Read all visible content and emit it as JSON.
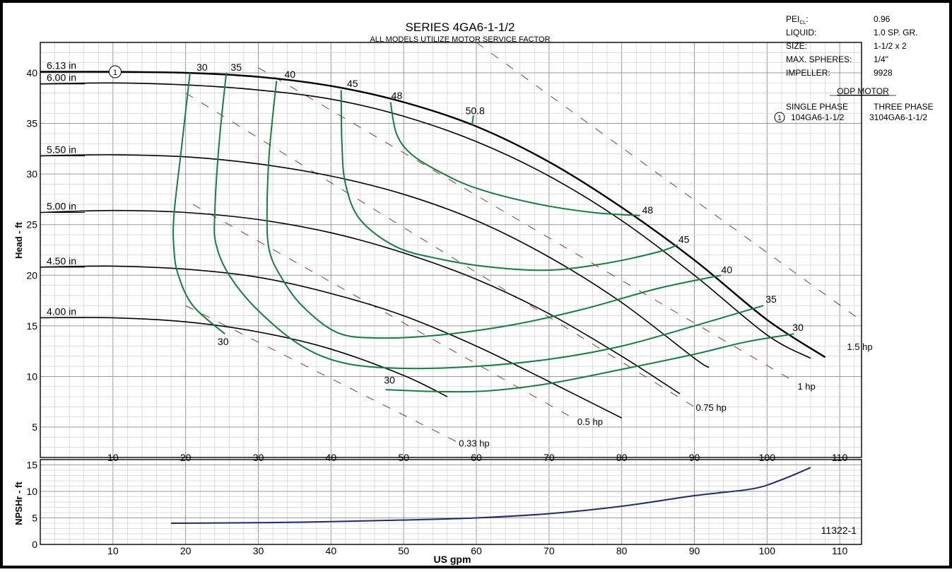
{
  "chart_data": {
    "type": "line",
    "title": "SERIES 4GA6-1-1/2",
    "subtitle": "ALL MODELS UTILIZE MOTOR SERVICE FACTOR",
    "xlabel": "US gpm",
    "ylabel_head": "Head - ft",
    "ylabel_npsh": "NPSHr - ft",
    "xlim": [
      0,
      113
    ],
    "ylim_head": [
      2,
      43
    ],
    "ylim_npsh": [
      0,
      16
    ],
    "x_ticks": [
      10,
      20,
      30,
      40,
      50,
      60,
      70,
      80,
      90,
      100,
      110
    ],
    "y_ticks_head": [
      5,
      10,
      15,
      20,
      25,
      30,
      35,
      40
    ],
    "y_ticks_npsh": [
      0,
      5,
      10,
      15
    ],
    "grid": true,
    "colors": {
      "impeller": "#000000",
      "efficiency": "#118040",
      "horsepower": "#8b3a2a",
      "npsh": "#1f2a6e",
      "border": "#000000"
    },
    "impeller_curves": [
      {
        "name": "6.13 in",
        "marker": "1",
        "points": [
          [
            0,
            40.1
          ],
          [
            10,
            40.1
          ],
          [
            20,
            40
          ],
          [
            30,
            39.6
          ],
          [
            40,
            38.7
          ],
          [
            50,
            37.1
          ],
          [
            60,
            34.7
          ],
          [
            70,
            31.2
          ],
          [
            80,
            26.7
          ],
          [
            90,
            21.5
          ],
          [
            100,
            15.6
          ],
          [
            108,
            11.9
          ]
        ]
      },
      {
        "name": "6.00 in",
        "points": [
          [
            0,
            38.9
          ],
          [
            10,
            39
          ],
          [
            20,
            38.8
          ],
          [
            30,
            38.3
          ],
          [
            40,
            37.4
          ],
          [
            50,
            35.7
          ],
          [
            60,
            33.2
          ],
          [
            70,
            29.8
          ],
          [
            80,
            25.4
          ],
          [
            90,
            20
          ],
          [
            100,
            14.1
          ],
          [
            106,
            11.8
          ]
        ]
      },
      {
        "name": "5.50 in",
        "points": [
          [
            0,
            31.8
          ],
          [
            10,
            31.9
          ],
          [
            20,
            31.7
          ],
          [
            30,
            31
          ],
          [
            40,
            29.8
          ],
          [
            50,
            28
          ],
          [
            60,
            25.4
          ],
          [
            70,
            21.8
          ],
          [
            80,
            17.3
          ],
          [
            90,
            11.8
          ],
          [
            92,
            10.9
          ]
        ]
      },
      {
        "name": "5.00 in",
        "points": [
          [
            0,
            26.2
          ],
          [
            10,
            26.4
          ],
          [
            20,
            26.2
          ],
          [
            30,
            25.5
          ],
          [
            40,
            24.2
          ],
          [
            50,
            22.2
          ],
          [
            60,
            19.6
          ],
          [
            70,
            16.2
          ],
          [
            80,
            12
          ],
          [
            88,
            8.3
          ]
        ]
      },
      {
        "name": "4.50 in",
        "points": [
          [
            0,
            20.8
          ],
          [
            10,
            20.9
          ],
          [
            20,
            20.6
          ],
          [
            30,
            19.8
          ],
          [
            40,
            18.2
          ],
          [
            50,
            16
          ],
          [
            60,
            13
          ],
          [
            70,
            9.5
          ],
          [
            80,
            5.9
          ]
        ]
      },
      {
        "name": "4.00 in",
        "points": [
          [
            0,
            15.8
          ],
          [
            10,
            15.8
          ],
          [
            20,
            15.4
          ],
          [
            30,
            14.4
          ],
          [
            40,
            12.7
          ],
          [
            50,
            10.1
          ],
          [
            56,
            8
          ]
        ]
      }
    ],
    "efficiency_curves": [
      {
        "name": "30",
        "label_top": "30",
        "label_left": "30",
        "label_right": "30",
        "points": [
          [
            20.6,
            40
          ],
          [
            19.5,
            33
          ],
          [
            18.4,
            26
          ],
          [
            18.4,
            22.5
          ],
          [
            19,
            20
          ],
          [
            21,
            17
          ],
          [
            25.4,
            14.2
          ]
        ],
        "bottom": [
          [
            47.5,
            8.7
          ],
          [
            55,
            8.5
          ],
          [
            62,
            8.6
          ],
          [
            70,
            9.3
          ],
          [
            80,
            10.7
          ],
          [
            90,
            12.2
          ],
          [
            97,
            13.4
          ],
          [
            103.7,
            14.2
          ]
        ]
      },
      {
        "name": "35",
        "label_top": "35",
        "label_right": "35",
        "points": [
          [
            25.6,
            40
          ],
          [
            24.6,
            33
          ],
          [
            24,
            26
          ],
          [
            24.2,
            23
          ],
          [
            26,
            20
          ],
          [
            30,
            16.5
          ],
          [
            36,
            13
          ],
          [
            42,
            11.3
          ],
          [
            50,
            10.8
          ],
          [
            60,
            11
          ],
          [
            70,
            11.7
          ],
          [
            80,
            13
          ],
          [
            90,
            15
          ],
          [
            99.5,
            17
          ]
        ]
      },
      {
        "name": "40",
        "label_top": "40",
        "label_right": "40",
        "points": [
          [
            32.5,
            39.2
          ],
          [
            31.5,
            32
          ],
          [
            31.2,
            26
          ],
          [
            31.5,
            22.5
          ],
          [
            33,
            20
          ],
          [
            36,
            17
          ],
          [
            41,
            14.3
          ],
          [
            47,
            13.8
          ],
          [
            55,
            14.1
          ],
          [
            65,
            15.1
          ],
          [
            75,
            16.7
          ],
          [
            85,
            18.7
          ],
          [
            93.7,
            20
          ]
        ]
      },
      {
        "name": "45",
        "label_top": "45",
        "label_right": "45",
        "points": [
          [
            41.4,
            38.3
          ],
          [
            41.5,
            33
          ],
          [
            42,
            29
          ],
          [
            44,
            25.5
          ],
          [
            49,
            22.8
          ],
          [
            55,
            21.6
          ],
          [
            62,
            20.8
          ],
          [
            70,
            20.5
          ],
          [
            78,
            21.2
          ],
          [
            85,
            22.3
          ],
          [
            87.7,
            23
          ]
        ]
      },
      {
        "name": "48",
        "label_top": "48",
        "label_right": "48",
        "points": [
          [
            48.2,
            37.1
          ],
          [
            49,
            34
          ],
          [
            51,
            32
          ],
          [
            55,
            30.2
          ],
          [
            60,
            28.6
          ],
          [
            68,
            27.1
          ],
          [
            76,
            26.2
          ],
          [
            82.5,
            25.9
          ]
        ]
      },
      {
        "name": "50.8",
        "label_top": "50.8",
        "points": [
          [
            59.4,
            34.8
          ],
          [
            59.6,
            35.8
          ]
        ]
      }
    ],
    "horsepower_lines": [
      {
        "name": "0.33 hp",
        "points": [
          [
            20,
            17
          ],
          [
            58,
            3.3
          ]
        ]
      },
      {
        "name": "0.5 hp",
        "points": [
          [
            21,
            27
          ],
          [
            74,
            5.6
          ]
        ]
      },
      {
        "name": "0.75 hp",
        "points": [
          [
            20,
            38
          ],
          [
            90,
            7
          ]
        ]
      },
      {
        "name": "1 hp",
        "points": [
          [
            30,
            40.5
          ],
          [
            104,
            9.4
          ]
        ]
      },
      {
        "name": "1.5 hp",
        "points": [
          [
            60,
            43
          ],
          [
            113,
            15.5
          ]
        ]
      }
    ],
    "npsh_curve": {
      "name": "NPSHr",
      "points": [
        [
          18,
          4
        ],
        [
          30,
          4.1
        ],
        [
          40,
          4.3
        ],
        [
          50,
          4.6
        ],
        [
          60,
          5
        ],
        [
          70,
          5.8
        ],
        [
          80,
          7.2
        ],
        [
          90,
          9.2
        ],
        [
          98,
          10.5
        ],
        [
          102,
          12.2
        ],
        [
          106,
          14.5
        ]
      ]
    },
    "info_table": {
      "rows": [
        {
          "label": "PEI",
          "sub": "CL",
          "suffix": ":",
          "value": "0.96"
        },
        {
          "label": "LIQUID:",
          "value": "1.0 SP. GR."
        },
        {
          "label": "SIZE:",
          "value": "1-1/2 x 2"
        },
        {
          "label": "MAX. SPHERES:",
          "value": "1/4\""
        },
        {
          "label": "IMPELLER:",
          "value": "9928"
        }
      ],
      "motor_heading": "ODP MOTOR",
      "col_headers": [
        "SINGLE PHASE",
        "THREE PHASE"
      ],
      "motor_row": {
        "marker": "1",
        "single": "104GA6-1-1/2",
        "three": "3104GA6-1-1/2"
      }
    },
    "footnote": "11322-1"
  }
}
